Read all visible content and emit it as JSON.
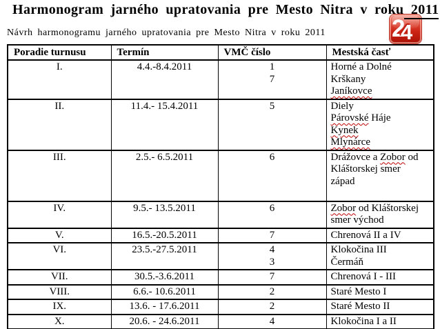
{
  "page": {
    "title_main": "Harmonogram jarného upratovania pre Mesto Nitra v roku",
    "title_year": " 2011",
    "subtitle": "Návrh harmonogramu jarného upratovania pre Mesto Nitra v roku 2011",
    "logo": {
      "digit1": "2",
      "digit2": "4",
      "color": "#cd2415"
    },
    "misspell_color": "#c00000"
  },
  "table": {
    "headers": [
      "Poradie turnusu",
      "Termín",
      "VMČ číslo",
      "Mestská časť"
    ],
    "rows": [
      {
        "poradie": "I.",
        "termin": "4.4.-8.4.2011",
        "vmc_lines": [
          "1",
          "7"
        ],
        "city_lines": [
          [
            {
              "t": "Horné a Dolné",
              "sq": false
            }
          ],
          [
            {
              "t": "Krškany",
              "sq": false
            }
          ],
          [
            {
              "t": "Janíkovce",
              "sq": true
            }
          ]
        ]
      },
      {
        "poradie": "II.",
        "termin": "11.4.- 15.4.2011",
        "vmc_lines": [
          "5"
        ],
        "city_lines": [
          [
            {
              "t": "Diely",
              "sq": false
            }
          ],
          [
            {
              "t": "Párovské",
              "sq": true
            },
            {
              "t": " Háje",
              "sq": false
            }
          ],
          [
            {
              "t": "Kynek",
              "sq": true
            }
          ],
          [
            {
              "t": "Mlynárce",
              "sq": true
            }
          ]
        ]
      },
      {
        "poradie": "III.",
        "termin": "2.5.- 6.5.2011",
        "vmc_lines": [
          "6"
        ],
        "city_lines": [
          [
            {
              "t": "Drážovce a ",
              "sq": false
            },
            {
              "t": "Zobor",
              "sq": true
            },
            {
              "t": " od",
              "sq": false
            }
          ],
          [
            {
              "t": "Kláštorskej smer",
              "sq": false
            }
          ],
          [
            {
              "t": "západ",
              "sq": false
            }
          ],
          []
        ]
      },
      {
        "poradie": "IV.",
        "termin": "9.5.- 13.5.2011",
        "vmc_lines": [
          "6"
        ],
        "city_lines": [
          [
            {
              "t": "Zobor",
              "sq": true
            },
            {
              "t": " od Kláštorskej",
              "sq": false
            }
          ],
          [
            {
              "t": "smer východ",
              "sq": false
            }
          ]
        ]
      },
      {
        "poradie": "V.",
        "termin": "16.5.-20.5.2011",
        "vmc_lines": [
          "7"
        ],
        "city_lines": [
          [
            {
              "t": "Chrenová II a IV",
              "sq": false
            }
          ]
        ]
      },
      {
        "poradie": "VI.",
        "termin": "23.5.-27.5.2011",
        "vmc_lines": [
          "4",
          "3"
        ],
        "city_lines": [
          [
            {
              "t": "Klokočina III",
              "sq": false
            }
          ],
          [
            {
              "t": "Čermáň",
              "sq": false
            }
          ]
        ]
      },
      {
        "poradie": "VII.",
        "termin": "30.5.-3.6.2011",
        "vmc_lines": [
          "7"
        ],
        "city_lines": [
          [
            {
              "t": "Chrenová I - III",
              "sq": false
            }
          ]
        ]
      },
      {
        "poradie": "VIII.",
        "termin": "6.6.- 10.6.2011",
        "vmc_lines": [
          "2"
        ],
        "city_lines": [
          [
            {
              "t": "Staré Mesto I",
              "sq": false
            }
          ]
        ]
      },
      {
        "poradie": "IX.",
        "termin": "13.6. - 17.6.2011",
        "vmc_lines": [
          "2"
        ],
        "city_lines": [
          [
            {
              "t": "Staré Mesto II",
              "sq": false
            }
          ]
        ]
      },
      {
        "poradie": "X.",
        "termin": "20.6. - 24.6.2011",
        "vmc_lines": [
          "4"
        ],
        "city_lines": [
          [
            {
              "t": "Klokočina I a II",
              "sq": false
            }
          ]
        ]
      }
    ]
  }
}
